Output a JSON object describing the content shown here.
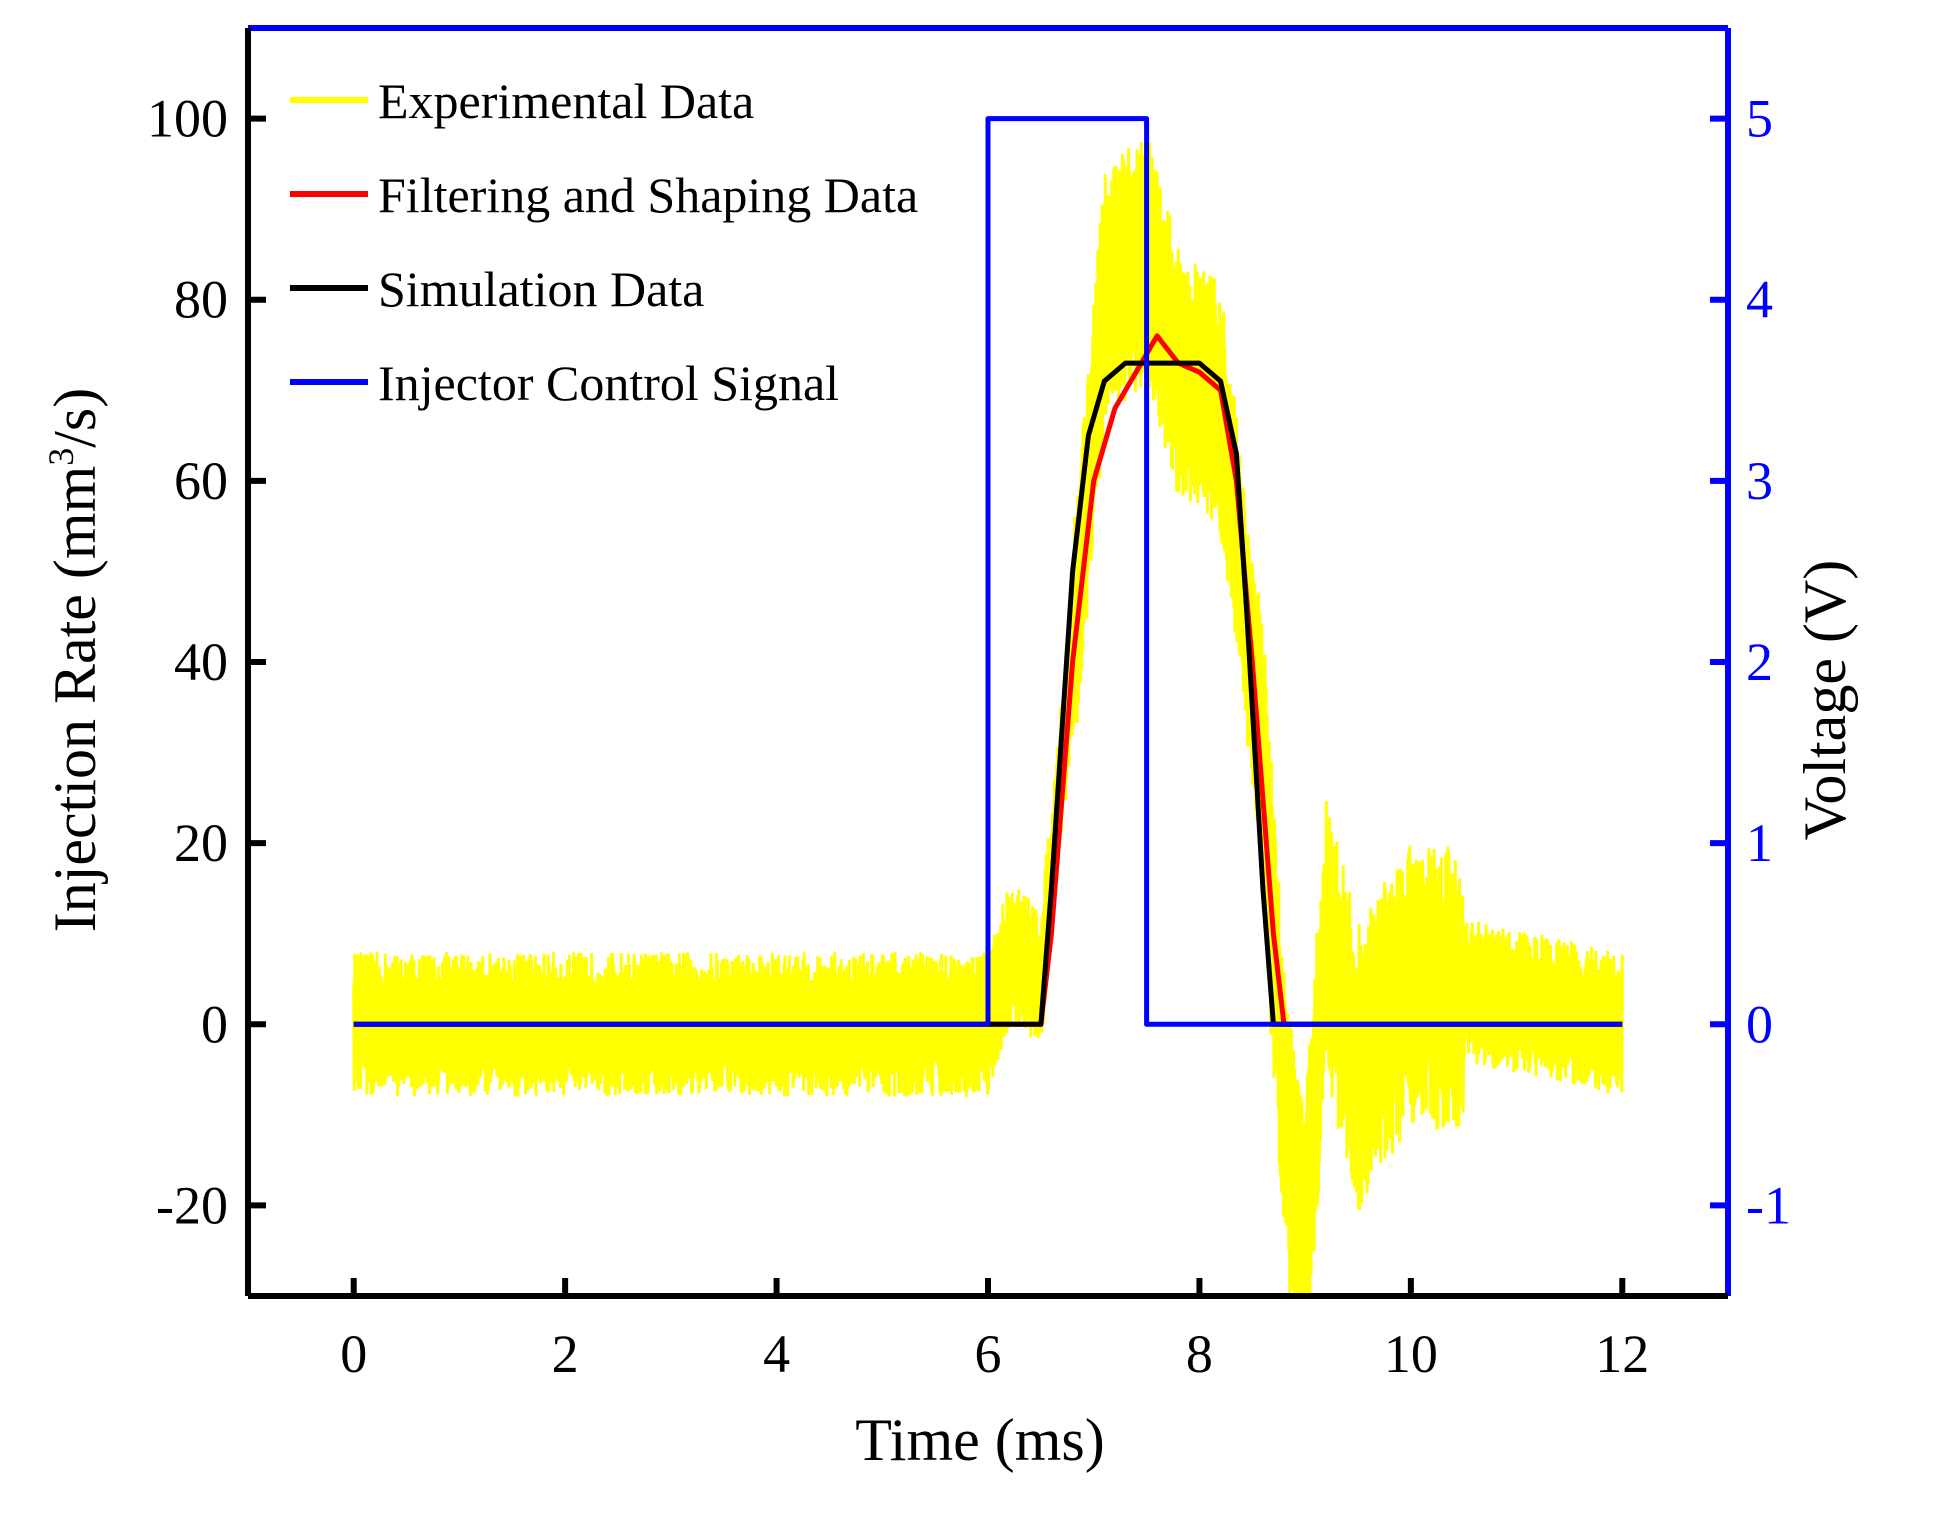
{
  "chart_data": {
    "type": "line",
    "title": "",
    "xlabel": "Time (ms)",
    "ylabel_left_prefix": "Injection Rate (mm",
    "ylabel_left_sup": "3",
    "ylabel_left_suffix": "/s)",
    "ylabel_right": "Voltage (V)",
    "xlim": [
      -1,
      13
    ],
    "ylim_left": [
      -30,
      110
    ],
    "ylim_right": [
      -1.5,
      5.5
    ],
    "x_ticks": [
      "0",
      "2",
      "4",
      "6",
      "8",
      "10",
      "12"
    ],
    "x_tick_values": [
      0,
      2,
      4,
      6,
      8,
      10,
      12
    ],
    "y_left_ticks": [
      "-20",
      "0",
      "20",
      "40",
      "60",
      "80",
      "100"
    ],
    "y_left_tick_values": [
      -20,
      0,
      20,
      40,
      60,
      80,
      100
    ],
    "y_right_ticks": [
      "-1",
      "0",
      "1",
      "2",
      "3",
      "4",
      "5"
    ],
    "y_right_tick_values": [
      -1,
      0,
      1,
      2,
      3,
      4,
      5
    ],
    "legend_position": "top-left",
    "series": [
      {
        "name": "Experimental Data",
        "color": "#ffff00",
        "axis": "left",
        "description_points": [
          [
            0,
            0
          ],
          [
            6.0,
            0
          ],
          [
            6.2,
            8
          ],
          [
            6.5,
            5
          ],
          [
            6.8,
            40
          ],
          [
            7.1,
            80
          ],
          [
            7.5,
            85
          ],
          [
            7.8,
            72
          ],
          [
            8.2,
            68
          ],
          [
            8.6,
            30
          ],
          [
            8.8,
            -10
          ],
          [
            9.0,
            -25
          ],
          [
            9.2,
            10
          ],
          [
            9.5,
            -5
          ],
          [
            10.0,
            5
          ],
          [
            12,
            0
          ]
        ],
        "noise_amplitude_baseline": 8
      },
      {
        "name": "Filtering and Shaping Data",
        "color": "#ff0000",
        "axis": "left",
        "points": [
          [
            0,
            0
          ],
          [
            6.5,
            0
          ],
          [
            6.6,
            10
          ],
          [
            6.8,
            40
          ],
          [
            7.0,
            60
          ],
          [
            7.2,
            68
          ],
          [
            7.4,
            72
          ],
          [
            7.6,
            76
          ],
          [
            7.8,
            73
          ],
          [
            8.0,
            72
          ],
          [
            8.2,
            70
          ],
          [
            8.35,
            60
          ],
          [
            8.5,
            40
          ],
          [
            8.7,
            10
          ],
          [
            8.8,
            0
          ],
          [
            12,
            0
          ]
        ]
      },
      {
        "name": "Simulation Data",
        "color": "#000000",
        "axis": "left",
        "points": [
          [
            0,
            0
          ],
          [
            6.5,
            0
          ],
          [
            6.6,
            15
          ],
          [
            6.8,
            50
          ],
          [
            6.95,
            65
          ],
          [
            7.1,
            71
          ],
          [
            7.3,
            73
          ],
          [
            8.0,
            73
          ],
          [
            8.2,
            71
          ],
          [
            8.35,
            63
          ],
          [
            8.45,
            45
          ],
          [
            8.6,
            15
          ],
          [
            8.7,
            0
          ],
          [
            12,
            0
          ]
        ]
      },
      {
        "name": "Injector Control Signal",
        "color": "#0000ff",
        "axis": "right",
        "points": [
          [
            0,
            0
          ],
          [
            6.0,
            0
          ],
          [
            6.0,
            5
          ],
          [
            7.5,
            5
          ],
          [
            7.5,
            0
          ],
          [
            12,
            0
          ]
        ]
      }
    ]
  }
}
